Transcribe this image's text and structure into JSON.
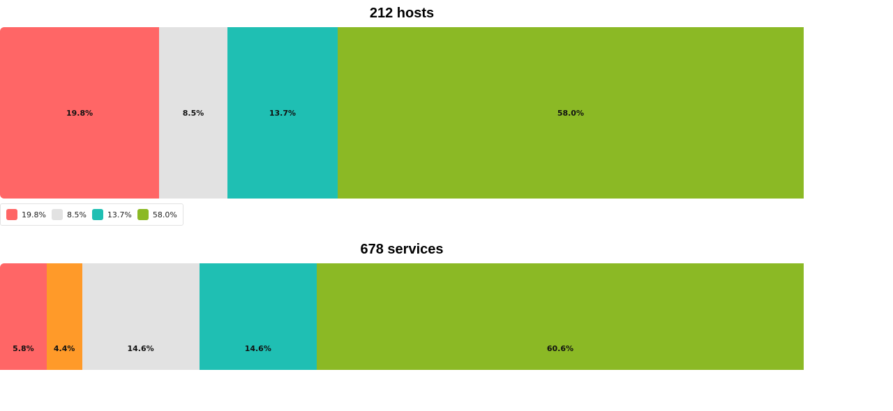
{
  "chart_data": [
    {
      "type": "bar",
      "orientation": "horizontal-stacked-100",
      "title": "212 hosts",
      "series": [
        {
          "value": 19.8,
          "label": "19.8%",
          "color": "#ff6666"
        },
        {
          "value": 8.5,
          "label": "8.5%",
          "color": "#e2e2e2"
        },
        {
          "value": 13.7,
          "label": "13.7%",
          "color": "#1fbfb3"
        },
        {
          "value": 58.0,
          "label": "58.0%",
          "color": "#8bb925"
        }
      ],
      "legend": {
        "placement": "bottom-left",
        "items": [
          "19.8%",
          "8.5%",
          "13.7%",
          "58.0%"
        ]
      }
    },
    {
      "type": "bar",
      "orientation": "horizontal-stacked-100",
      "title": "678 services",
      "series": [
        {
          "value": 5.8,
          "label": "5.8%",
          "color": "#ff6666"
        },
        {
          "value": 4.4,
          "label": "4.4%",
          "color": "#ff9a29"
        },
        {
          "value": 14.6,
          "label": "14.6%",
          "color": "#e2e2e2"
        },
        {
          "value": 14.6,
          "label": "14.6%",
          "color": "#1fbfb3"
        },
        {
          "value": 60.6,
          "label": "60.6%",
          "color": "#8bb925"
        }
      ]
    }
  ]
}
